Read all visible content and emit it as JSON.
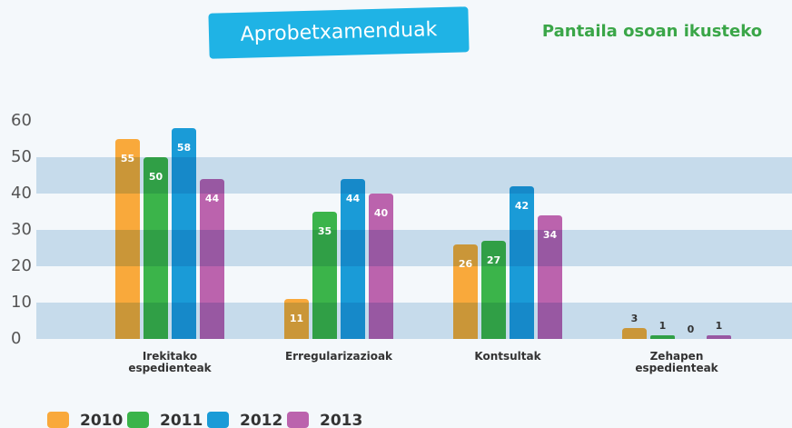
{
  "chart_data": {
    "type": "bar",
    "title": "Aprobetxamenduak",
    "fullscreen_link": "Pantaila osoan ikusteko",
    "categories": [
      "Irekitako espedienteak",
      "Erregularizazioak",
      "Kontsultak",
      "Zehapen espedienteak"
    ],
    "series": [
      {
        "name": "2010",
        "color": "#f9a93b",
        "values": [
          55,
          11,
          26,
          3
        ]
      },
      {
        "name": "2011",
        "color": "#3bb44a",
        "values": [
          50,
          35,
          27,
          1
        ]
      },
      {
        "name": "2012",
        "color": "#1a9bd7",
        "values": [
          58,
          44,
          42,
          0
        ]
      },
      {
        "name": "2013",
        "color": "#bb63ad",
        "values": [
          44,
          40,
          34,
          1
        ]
      }
    ],
    "ylim": [
      0,
      60
    ],
    "yticks": [
      0,
      10,
      20,
      30,
      40,
      50,
      60
    ],
    "grid": true,
    "legend": "bottom"
  }
}
